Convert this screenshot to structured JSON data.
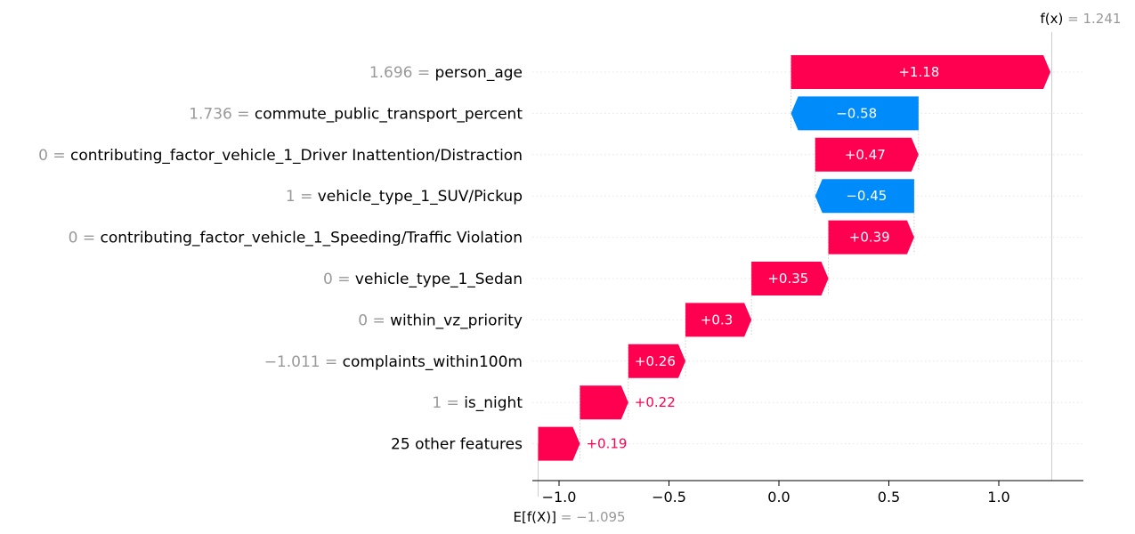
{
  "chart_data": {
    "type": "waterfall",
    "base_value": -1.095,
    "base_label": "E[f(X)]",
    "base_value_text": "= −1.095",
    "output_value": 1.241,
    "output_label": "f(x)",
    "output_value_text": "= 1.241",
    "features": [
      {
        "value": "1.696",
        "name": "person_age",
        "contribution": 1.18,
        "text": "+1.18"
      },
      {
        "value": "1.736",
        "name": "commute_public_transport_percent",
        "contribution": -0.58,
        "text": "−0.58"
      },
      {
        "value": "0",
        "name": "contributing_factor_vehicle_1_Driver Inattention/Distraction",
        "contribution": 0.47,
        "text": "+0.47"
      },
      {
        "value": "1",
        "name": "vehicle_type_1_SUV/Pickup",
        "contribution": -0.45,
        "text": "−0.45"
      },
      {
        "value": "0",
        "name": "contributing_factor_vehicle_1_Speeding/Traffic Violation",
        "contribution": 0.39,
        "text": "+0.39"
      },
      {
        "value": "0",
        "name": "vehicle_type_1_Sedan",
        "contribution": 0.35,
        "text": "+0.35"
      },
      {
        "value": "0",
        "name": "within_vz_priority",
        "contribution": 0.3,
        "text": "+0.3"
      },
      {
        "value": "−1.011",
        "name": "complaints_within100m",
        "contribution": 0.26,
        "text": "+0.26"
      },
      {
        "value": "1",
        "name": "is_night",
        "contribution": 0.22,
        "text": "+0.22"
      },
      {
        "value": "",
        "name": "25 other features",
        "contribution": 0.19,
        "text": "+0.19"
      }
    ],
    "xlim": [
      -1.09,
      1.38
    ],
    "xticks": [
      {
        "value": -1.0,
        "label": "−1.0"
      },
      {
        "value": -0.5,
        "label": "−0.5"
      },
      {
        "value": 0.0,
        "label": "0.0"
      },
      {
        "value": 0.5,
        "label": "0.5"
      },
      {
        "value": 1.0,
        "label": "1.0"
      }
    ],
    "colors": {
      "positive": "#ff0051",
      "negative": "#008bfb",
      "grid": "#cccccc",
      "muted": "#999999"
    }
  }
}
